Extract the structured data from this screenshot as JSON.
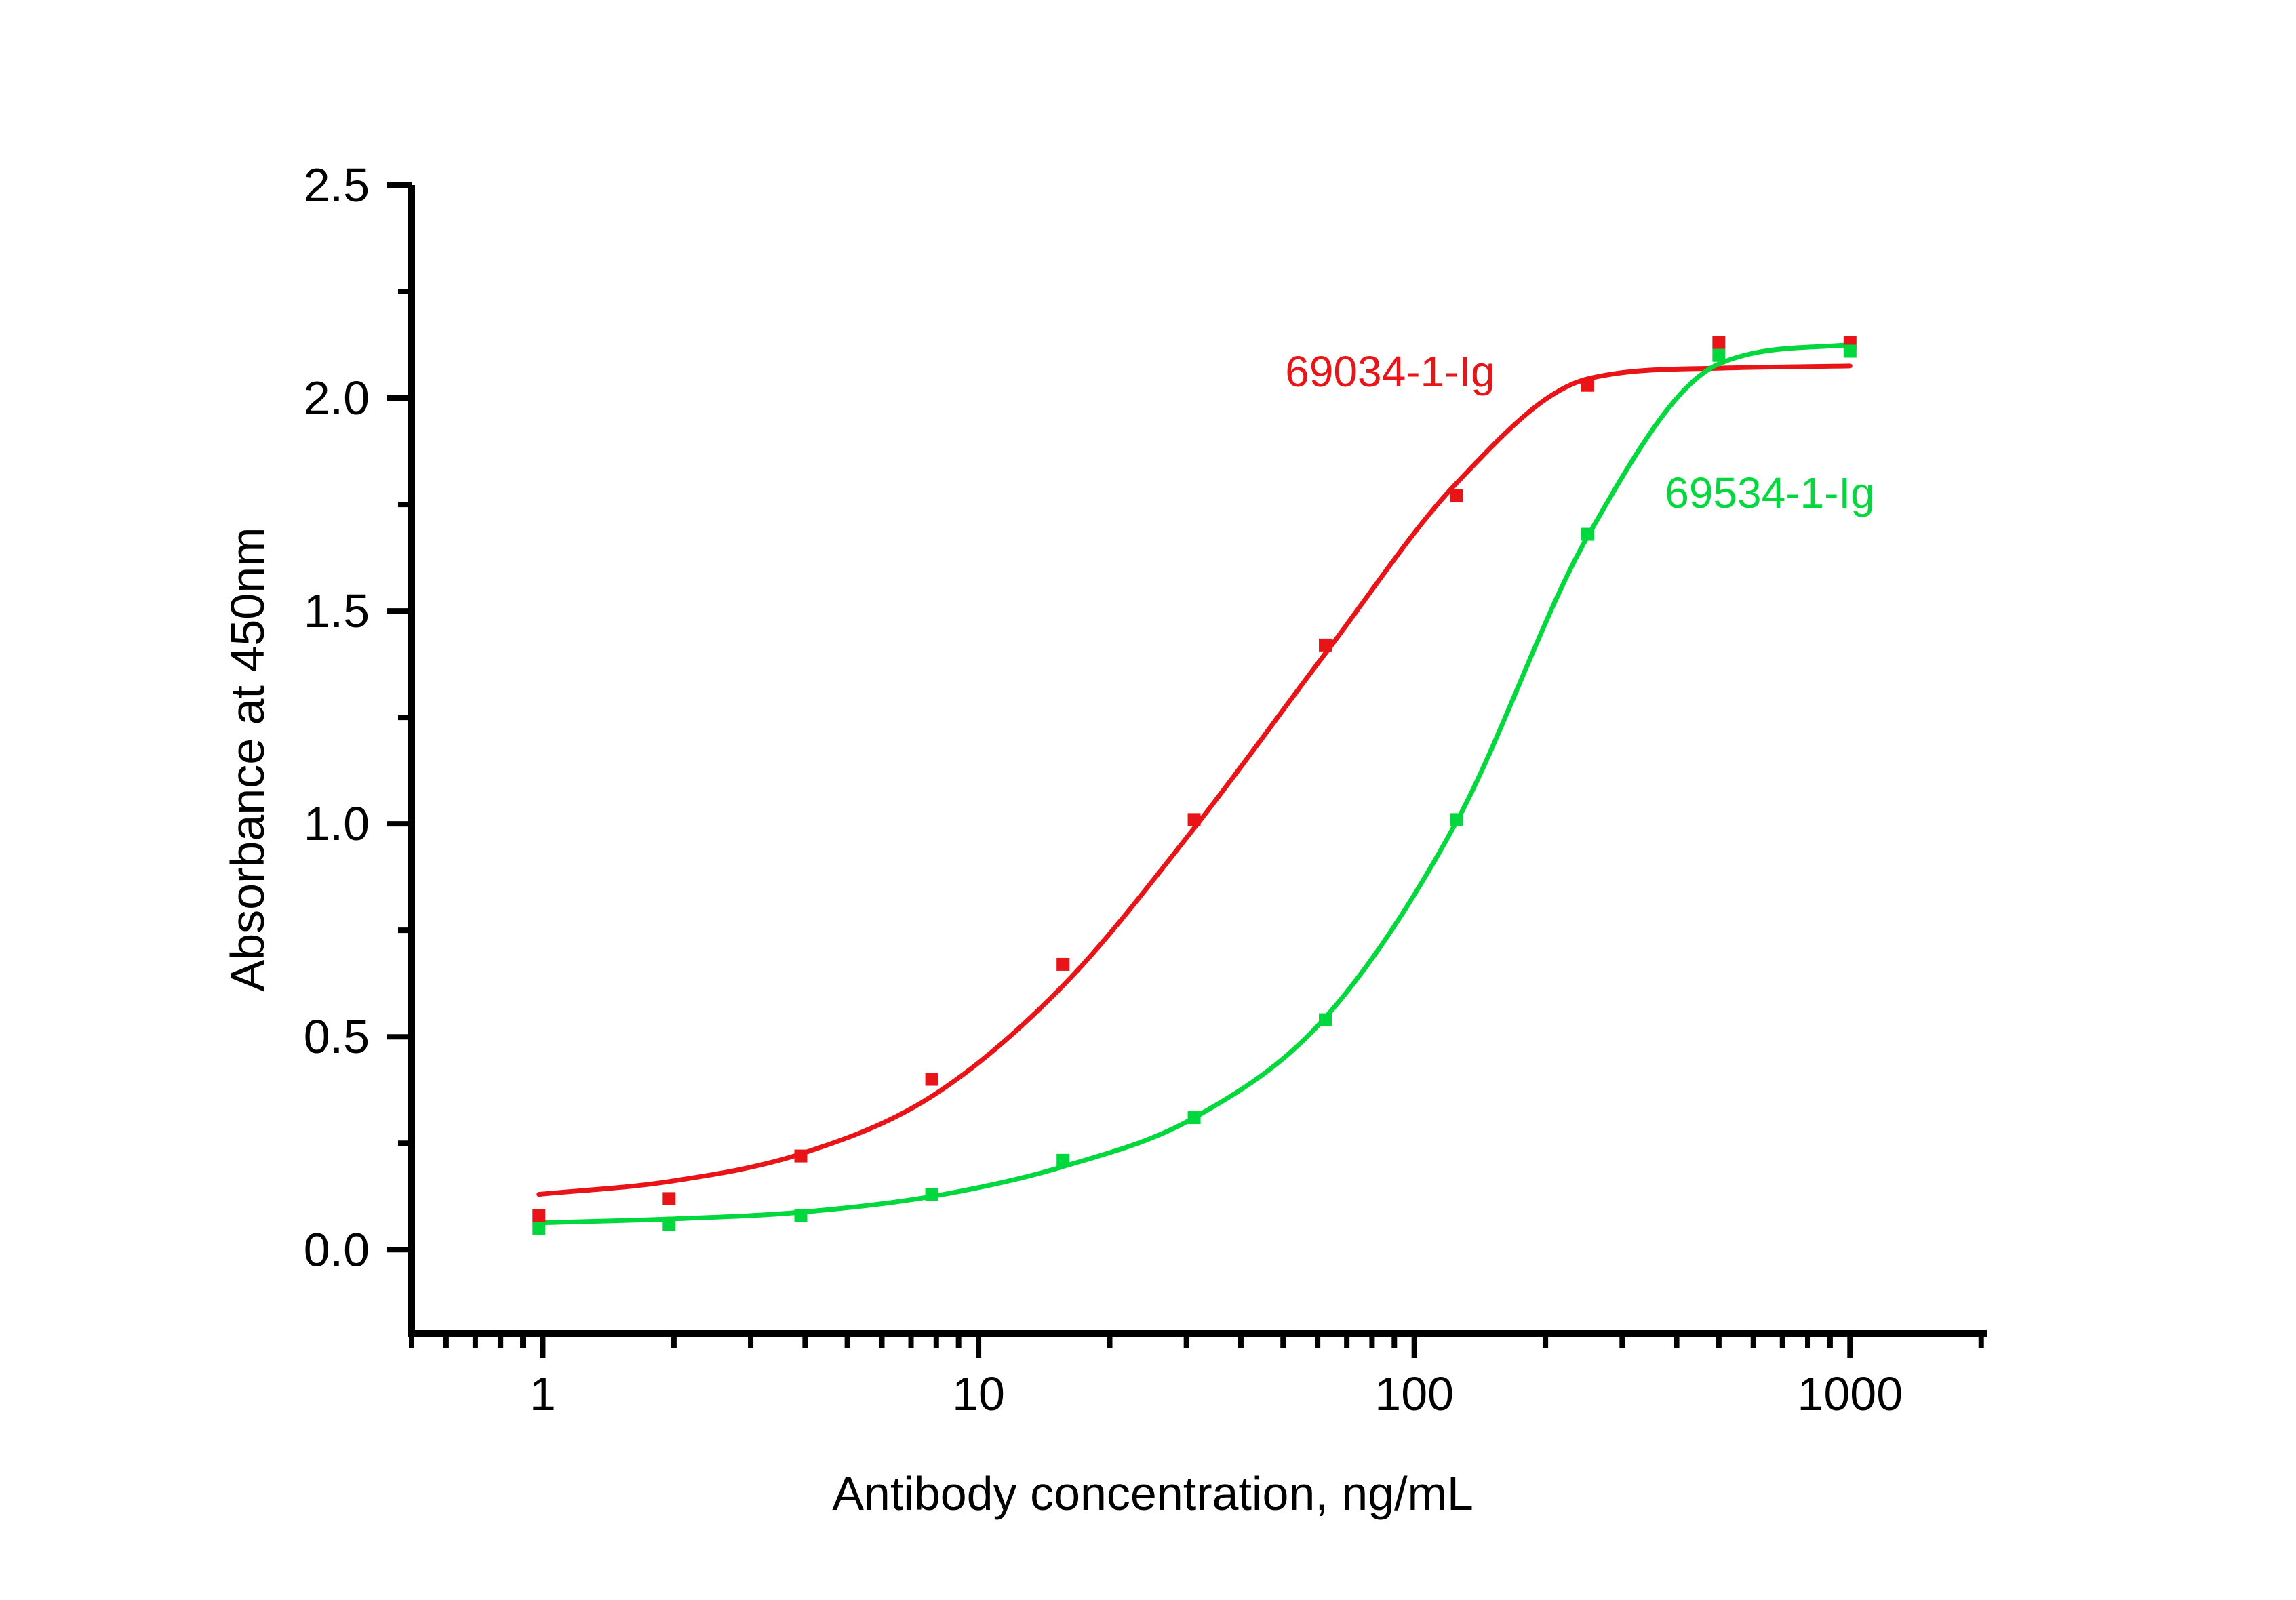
{
  "figure": {
    "background": "#ffffff",
    "axis_color": "#000000"
  },
  "chart_data": {
    "type": "scatter",
    "title": "",
    "xlabel": "Antibody concentration, ng/mL",
    "ylabel": "Absorbance at 450nm",
    "x_scale": "log10",
    "xlim": [
      0.5,
      2060
    ],
    "ylim": [
      -0.197,
      2.5
    ],
    "grid": false,
    "legend_position": "inline-annotations",
    "x_major_ticks": [
      1,
      10,
      100,
      1000
    ],
    "x_major_tick_labels": [
      "1",
      "10",
      "100",
      "1000"
    ],
    "x_minor_ticks": [
      0.5,
      0.6,
      0.7,
      0.8,
      0.9,
      2,
      3,
      4,
      5,
      6,
      7,
      8,
      9,
      20,
      30,
      40,
      50,
      60,
      70,
      80,
      90,
      200,
      300,
      400,
      500,
      600,
      700,
      800,
      900,
      2000
    ],
    "y_major_ticks": [
      0.0,
      0.5,
      1.0,
      1.5,
      2.0,
      2.5
    ],
    "y_major_tick_labels": [
      "0.0",
      "0.5",
      "1.0",
      "1.5",
      "2.0",
      "2.5"
    ],
    "y_minor_ticks": [
      0.25,
      0.75,
      1.25,
      1.75,
      2.25
    ],
    "x": [
      0.98,
      1.95,
      3.91,
      7.81,
      15.63,
      31.25,
      62.5,
      125,
      250,
      500,
      1000
    ],
    "series": [
      {
        "name": "69034-1-Ig",
        "color": "#e81417",
        "marker": "square",
        "values": [
          0.08,
          0.12,
          0.22,
          0.4,
          0.67,
          1.01,
          1.42,
          1.77,
          2.03,
          2.13,
          2.13
        ],
        "fit_curve": [
          0.13,
          0.16,
          0.225,
          0.36,
          0.62,
          0.99,
          1.4,
          1.8,
          2.045,
          2.07,
          2.075
        ]
      },
      {
        "name": "69534-1-Ig",
        "color": "#00d83e",
        "marker": "square",
        "values": [
          0.05,
          0.06,
          0.08,
          0.13,
          0.21,
          0.31,
          0.54,
          1.01,
          1.68,
          2.1,
          2.11
        ],
        "fit_curve": [
          0.063,
          0.072,
          0.088,
          0.125,
          0.195,
          0.31,
          0.545,
          1.005,
          1.675,
          2.08,
          2.125
        ]
      }
    ]
  }
}
